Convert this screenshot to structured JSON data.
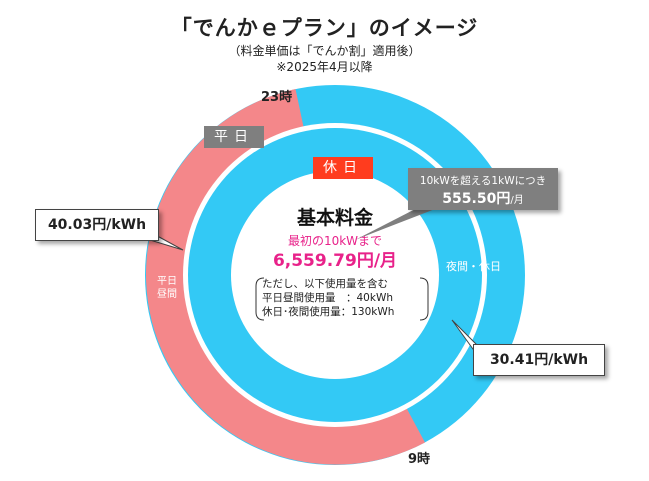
{
  "title": "「でんかｅプラン」のイメージ",
  "subtitle_1": "（料金単価は「でんか割」適用後）",
  "subtitle_2": "※2025年4月以降",
  "time_top": "23時",
  "time_bottom": "9時",
  "tag_weekday": "平日",
  "tag_holiday": "休日",
  "outer_ring": {
    "weekday_daytime_label_1": "平日",
    "weekday_daytime_label_2": "昼間",
    "night_holiday_label": "夜間・休日"
  },
  "center": {
    "title": "基本料金",
    "note": "最初の10kWまで",
    "price": "6,559.79円/月"
  },
  "conditions": {
    "line1": "ただし、以下使用量を含む",
    "line2": "平日昼間使用量　：40kWh",
    "line3": "休日･夜間使用量：130kWh"
  },
  "extra_rate": {
    "label": "10kWを超える1kWにつき",
    "value": "555.50円",
    "unit": "/月"
  },
  "rate_daytime": "40.03円/kWh",
  "rate_night": "30.41円/kWh",
  "colors": {
    "weekday_daytime": "#f4878a",
    "night_holiday": "#33c9f5",
    "holiday_tag": "#ff3c1e",
    "weekday_tag": "#7f7f7f",
    "accent_pink": "#e8228a"
  }
}
